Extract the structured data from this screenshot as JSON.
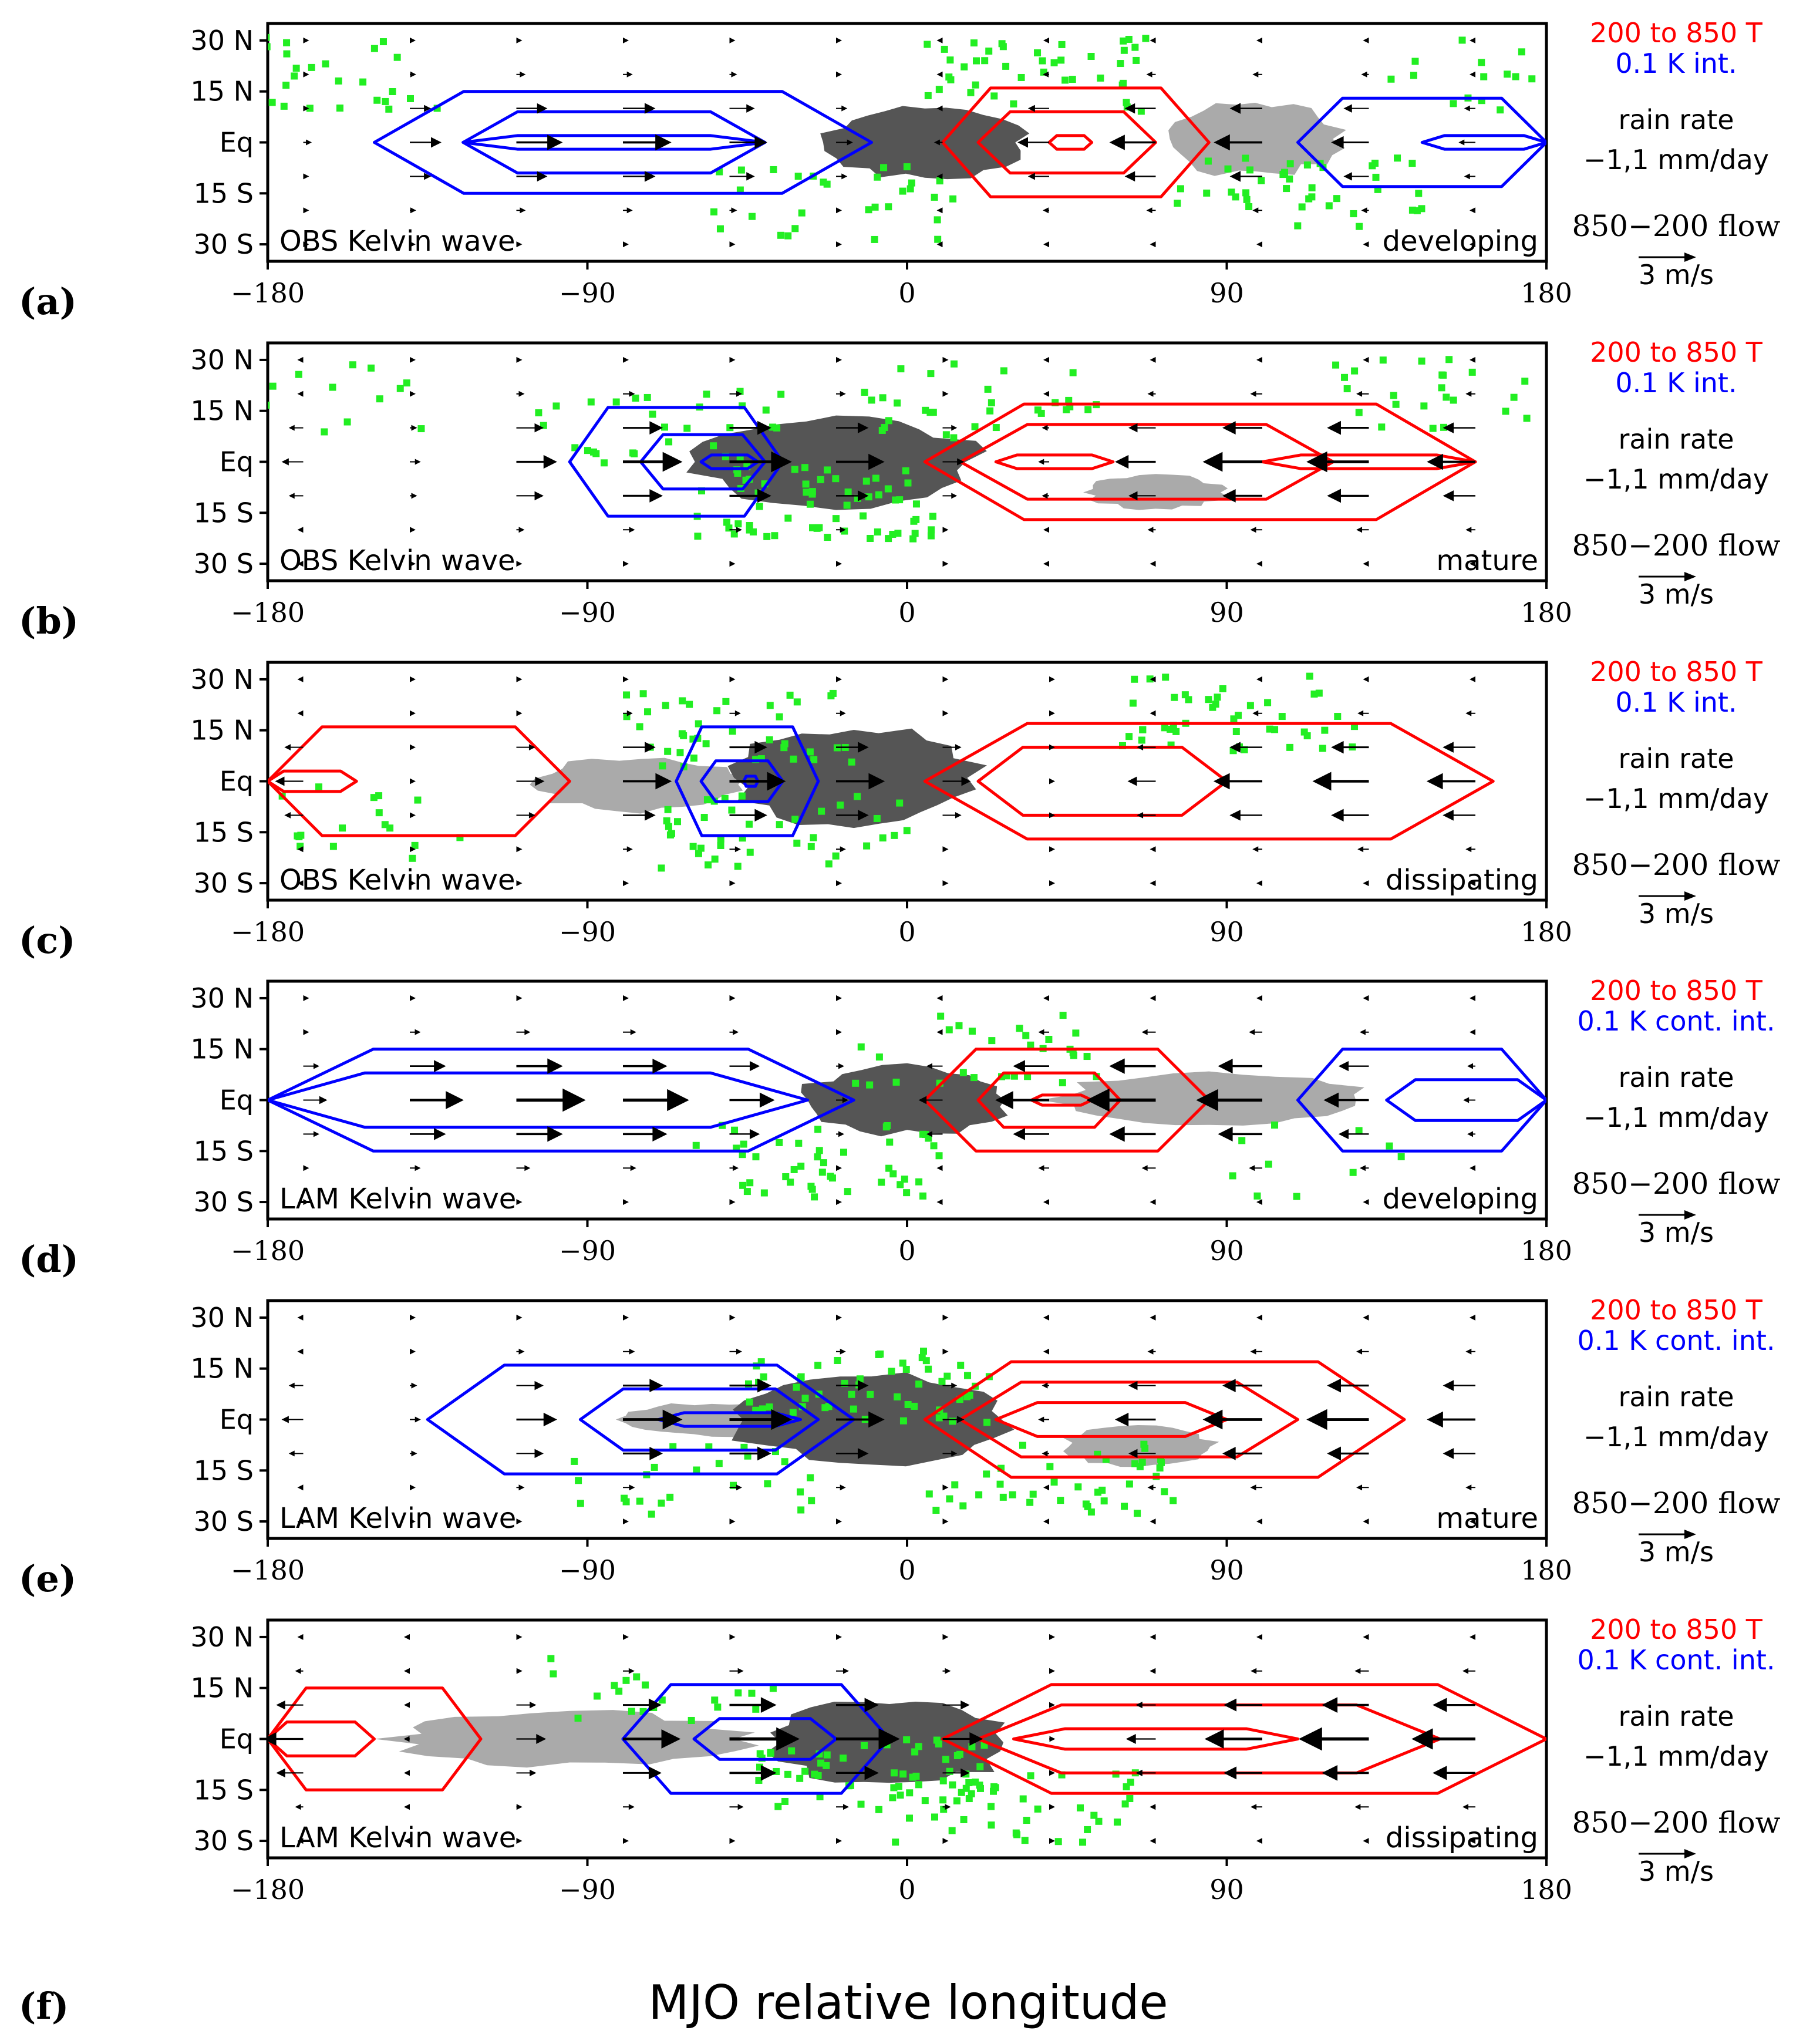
{
  "figure": {
    "xlabel": "MJO relative longitude",
    "bottom_panel_label": "(f)"
  },
  "legend": {
    "temp_label": "200 to 850 T",
    "rain_label": "rain rate",
    "rain_values": "−1,1 mm/day",
    "flow_label": "850−200 flow",
    "arrow_scale": "3 m/s",
    "warm_color": "#ff0000",
    "cool_color": "#0000ff",
    "rain_pos_color": "#555555",
    "rain_neg_color": "#aaaaaa",
    "lightning_color": "#22ee22"
  },
  "chart_data": [
    {
      "type": "contour-map",
      "panel_label": "(a)",
      "title_left": "OBS Kelvin wave",
      "title_right": "developing",
      "interval_label": "0.1 K int.",
      "x_ticks": [
        "−180",
        "−90",
        "0",
        "90",
        "180"
      ],
      "y_ticks": [
        "30 N",
        "15 N",
        "Eq",
        "15 S",
        "30 S"
      ],
      "xlim": [
        -180,
        180
      ],
      "ylim": [
        -35,
        35
      ],
      "blue_contours": [
        {
          "lon_west": -150,
          "lon_east": -10,
          "half_width_lat": 15
        },
        {
          "lon_west": -125,
          "lon_east": -40,
          "half_width_lat": 9
        },
        {
          "lon_west": -125,
          "lon_east": -40,
          "half_width_lat": 2
        },
        {
          "lon_west": 110,
          "lon_east": 180,
          "half_width_lat": 13
        },
        {
          "lon_west": 145,
          "lon_east": 180,
          "half_width_lat": 2
        }
      ],
      "red_contours": [
        {
          "lon_west": 10,
          "lon_east": 85,
          "half_width_lat": 16
        },
        {
          "lon_west": 20,
          "lon_east": 70,
          "half_width_lat": 9
        },
        {
          "lon_west": 40,
          "lon_east": 52,
          "half_width_lat": 2
        }
      ],
      "rain_dark": [
        {
          "lon_center": 5,
          "lat_center": 0,
          "half_lon": 28,
          "half_lat": 11
        }
      ],
      "rain_light": [
        {
          "lon_center": 98,
          "lat_center": 1,
          "half_lon": 24,
          "half_lat": 11
        }
      ],
      "wind_amplitude_ms": 3.5,
      "wind_profile": {
        "easterly_lon": 35,
        "westerly_lon": -90,
        "shape": "sine"
      },
      "lightning_clusters": [
        {
          "lon": -165,
          "lat": 20,
          "count": 32
        },
        {
          "lon": -20,
          "lat": -18,
          "count": 30
        },
        {
          "lon": 40,
          "lat": 20,
          "count": 42
        },
        {
          "lon": 110,
          "lat": -15,
          "count": 40
        },
        {
          "lon": 170,
          "lat": 20,
          "count": 20
        }
      ]
    },
    {
      "type": "contour-map",
      "panel_label": "(b)",
      "title_left": "OBS Kelvin wave",
      "title_right": "mature",
      "interval_label": "0.1 K int.",
      "x_ticks": [
        "−180",
        "−90",
        "0",
        "90",
        "180"
      ],
      "y_ticks": [
        "30 N",
        "15 N",
        "Eq",
        "15 S",
        "30 S"
      ],
      "xlim": [
        -180,
        180
      ],
      "ylim": [
        -35,
        35
      ],
      "blue_contours": [
        {
          "lon_west": -95,
          "lon_east": -35,
          "half_width_lat": 16
        },
        {
          "lon_west": -75,
          "lon_east": -40,
          "half_width_lat": 8
        },
        {
          "lon_west": -58,
          "lon_east": -42,
          "half_width_lat": 2
        }
      ],
      "red_contours": [
        {
          "lon_west": 5,
          "lon_east": 160,
          "half_width_lat": 17
        },
        {
          "lon_west": 15,
          "lon_east": 120,
          "half_width_lat": 11
        },
        {
          "lon_west": 25,
          "lon_east": 58,
          "half_width_lat": 2
        },
        {
          "lon_west": 100,
          "lon_east": 160,
          "half_width_lat": 2
        }
      ],
      "rain_dark": [
        {
          "lon_center": -20,
          "lat_center": 0,
          "half_lon": 40,
          "half_lat": 13
        }
      ],
      "rain_light": [
        {
          "lon_center": 70,
          "lat_center": -9,
          "half_lon": 20,
          "half_lat": 5
        }
      ],
      "wind_amplitude_ms": 4.5,
      "wind_profile": {
        "easterly_lon": 60,
        "westerly_lon": -60,
        "shape": "sine"
      },
      "lightning_clusters": [
        {
          "lon": -165,
          "lat": 18,
          "count": 20
        },
        {
          "lon": -70,
          "lat": 10,
          "count": 30
        },
        {
          "lon": -25,
          "lat": -12,
          "count": 65
        },
        {
          "lon": 20,
          "lat": 18,
          "count": 30
        },
        {
          "lon": 155,
          "lat": 20,
          "count": 30
        }
      ]
    },
    {
      "type": "contour-map",
      "panel_label": "(c)",
      "title_left": "OBS Kelvin wave",
      "title_right": "dissipating",
      "interval_label": "0.1 K int.",
      "x_ticks": [
        "−180",
        "−90",
        "0",
        "90",
        "180"
      ],
      "y_ticks": [
        "30 N",
        "15 N",
        "Eq",
        "15 S",
        "30 S"
      ],
      "xlim": [
        -180,
        180
      ],
      "ylim": [
        -35,
        35
      ],
      "blue_contours": [
        {
          "lon_west": -65,
          "lon_east": -25,
          "half_width_lat": 16
        },
        {
          "lon_west": -58,
          "lon_east": -35,
          "half_width_lat": 6
        },
        {
          "lon_west": -46,
          "lon_east": -42,
          "half_width_lat": 1.5
        }
      ],
      "red_contours": [
        {
          "lon_west": 5,
          "lon_east": 165,
          "half_width_lat": 17
        },
        {
          "lon_west": 20,
          "lon_east": 90,
          "half_width_lat": 10
        },
        {
          "lon_west": -180,
          "lon_east": -95,
          "half_width_lat": 16
        },
        {
          "lon_west": -180,
          "lon_east": -155,
          "half_width_lat": 3
        }
      ],
      "rain_dark": [
        {
          "lon_center": -15,
          "lat_center": 1,
          "half_lon": 35,
          "half_lat": 15
        }
      ],
      "rain_light": [
        {
          "lon_center": -75,
          "lat_center": -1,
          "half_lon": 30,
          "half_lat": 8
        }
      ],
      "wind_amplitude_ms": 4.0,
      "wind_profile": {
        "easterly_lon": 70,
        "westerly_lon": -50,
        "shape": "sine"
      },
      "lightning_clusters": [
        {
          "lon": -45,
          "lat": 15,
          "count": 40
        },
        {
          "lon": -35,
          "lat": -15,
          "count": 40
        },
        {
          "lon": 95,
          "lat": 20,
          "count": 45
        },
        {
          "lon": -155,
          "lat": -12,
          "count": 20
        }
      ]
    },
    {
      "type": "contour-map",
      "panel_label": "(d)",
      "title_left": "LAM Kelvin wave",
      "title_right": "developing",
      "interval_label": "0.1 K cont. int.",
      "x_ticks": [
        "−180",
        "−90",
        "0",
        "90",
        "180"
      ],
      "y_ticks": [
        "30 N",
        "15 N",
        "Eq",
        "15 S",
        "30 S"
      ],
      "xlim": [
        -180,
        180
      ],
      "ylim": [
        -35,
        35
      ],
      "blue_contours": [
        {
          "lon_west": -180,
          "lon_east": -15,
          "half_width_lat": 15
        },
        {
          "lon_west": -180,
          "lon_east": -28,
          "half_width_lat": 8
        },
        {
          "lon_west": 110,
          "lon_east": 180,
          "half_width_lat": 15
        },
        {
          "lon_west": 135,
          "lon_east": 180,
          "half_width_lat": 6
        }
      ],
      "red_contours": [
        {
          "lon_west": 5,
          "lon_east": 85,
          "half_width_lat": 15
        },
        {
          "lon_west": 20,
          "lon_east": 60,
          "half_width_lat": 8
        },
        {
          "lon_west": 35,
          "lon_east": 52,
          "half_width_lat": 1.5
        }
      ],
      "rain_dark": [
        {
          "lon_center": 0,
          "lat_center": 0,
          "half_lon": 30,
          "half_lat": 10
        }
      ],
      "rain_light": [
        {
          "lon_center": 85,
          "lat_center": 0,
          "half_lon": 45,
          "half_lat": 8
        }
      ],
      "wind_amplitude_ms": 5.0,
      "wind_profile": {
        "easterly_lon": 40,
        "westerly_lon": -100,
        "shape": "sine"
      },
      "lightning_clusters": [
        {
          "lon": -25,
          "lat": -18,
          "count": 45
        },
        {
          "lon": 20,
          "lat": 15,
          "count": 30
        },
        {
          "lon": 105,
          "lat": -18,
          "count": 10
        }
      ]
    },
    {
      "type": "contour-map",
      "panel_label": "(e)",
      "title_left": "LAM Kelvin wave",
      "title_right": "mature",
      "interval_label": "0.1 K cont. int.",
      "x_ticks": [
        "−180",
        "−90",
        "0",
        "90",
        "180"
      ],
      "y_ticks": [
        "30 N",
        "15 N",
        "Eq",
        "15 S",
        "30 S"
      ],
      "xlim": [
        -180,
        180
      ],
      "ylim": [
        -35,
        35
      ],
      "blue_contours": [
        {
          "lon_west": -135,
          "lon_east": -15,
          "half_width_lat": 16
        },
        {
          "lon_west": -92,
          "lon_east": -25,
          "half_width_lat": 9
        },
        {
          "lon_west": -70,
          "lon_east": -30,
          "half_width_lat": 2
        }
      ],
      "red_contours": [
        {
          "lon_west": 5,
          "lon_east": 140,
          "half_width_lat": 17
        },
        {
          "lon_west": 15,
          "lon_east": 110,
          "half_width_lat": 11
        },
        {
          "lon_west": 25,
          "lon_east": 90,
          "half_width_lat": 5
        }
      ],
      "rain_dark": [
        {
          "lon_center": -10,
          "lat_center": 0,
          "half_lon": 40,
          "half_lat": 13
        }
      ],
      "rain_light": [
        {
          "lon_center": -55,
          "lat_center": 0,
          "half_lon": 25,
          "half_lat": 5
        },
        {
          "lon_center": 65,
          "lat_center": -8,
          "half_lon": 22,
          "half_lat": 6
        }
      ],
      "wind_amplitude_ms": 4.5,
      "wind_profile": {
        "easterly_lon": 50,
        "westerly_lon": -60,
        "shape": "sine"
      },
      "lightning_clusters": [
        {
          "lon": -10,
          "lat": 10,
          "count": 55
        },
        {
          "lon": -60,
          "lat": -18,
          "count": 25
        },
        {
          "lon": 40,
          "lat": -18,
          "count": 40
        }
      ]
    },
    {
      "type": "contour-map",
      "panel_label": "",
      "title_left": "LAM Kelvin wave",
      "title_right": "dissipating",
      "interval_label": "0.1 K cont. int.",
      "x_ticks": [
        "−180",
        "−90",
        "0",
        "90",
        "180"
      ],
      "y_ticks": [
        "30 N",
        "15 N",
        "Eq",
        "15 S",
        "30 S"
      ],
      "xlim": [
        -180,
        180
      ],
      "ylim": [
        -35,
        35
      ],
      "blue_contours": [
        {
          "lon_west": -80,
          "lon_east": -5,
          "half_width_lat": 16
        },
        {
          "lon_west": -60,
          "lon_east": -20,
          "half_width_lat": 6
        }
      ],
      "red_contours": [
        {
          "lon_west": 10,
          "lon_east": 180,
          "half_width_lat": 16
        },
        {
          "lon_west": 20,
          "lon_east": 150,
          "half_width_lat": 10
        },
        {
          "lon_west": 30,
          "lon_east": 110,
          "half_width_lat": 3
        },
        {
          "lon_west": -180,
          "lon_east": -120,
          "half_width_lat": 15
        },
        {
          "lon_west": -180,
          "lon_east": -150,
          "half_width_lat": 5
        }
      ],
      "rain_dark": [
        {
          "lon_center": -5,
          "lat_center": -1,
          "half_lon": 35,
          "half_lat": 13
        }
      ],
      "rain_light": [
        {
          "lon_center": -95,
          "lat_center": 0,
          "half_lon": 50,
          "half_lat": 8
        }
      ],
      "wind_amplitude_ms": 5.0,
      "wind_profile": {
        "easterly_lon": 70,
        "westerly_lon": -45,
        "shape": "sine"
      },
      "lightning_clusters": [
        {
          "lon": -10,
          "lat": -10,
          "count": 55
        },
        {
          "lon": 30,
          "lat": -20,
          "count": 40
        },
        {
          "lon": -70,
          "lat": 15,
          "count": 20
        }
      ]
    }
  ]
}
